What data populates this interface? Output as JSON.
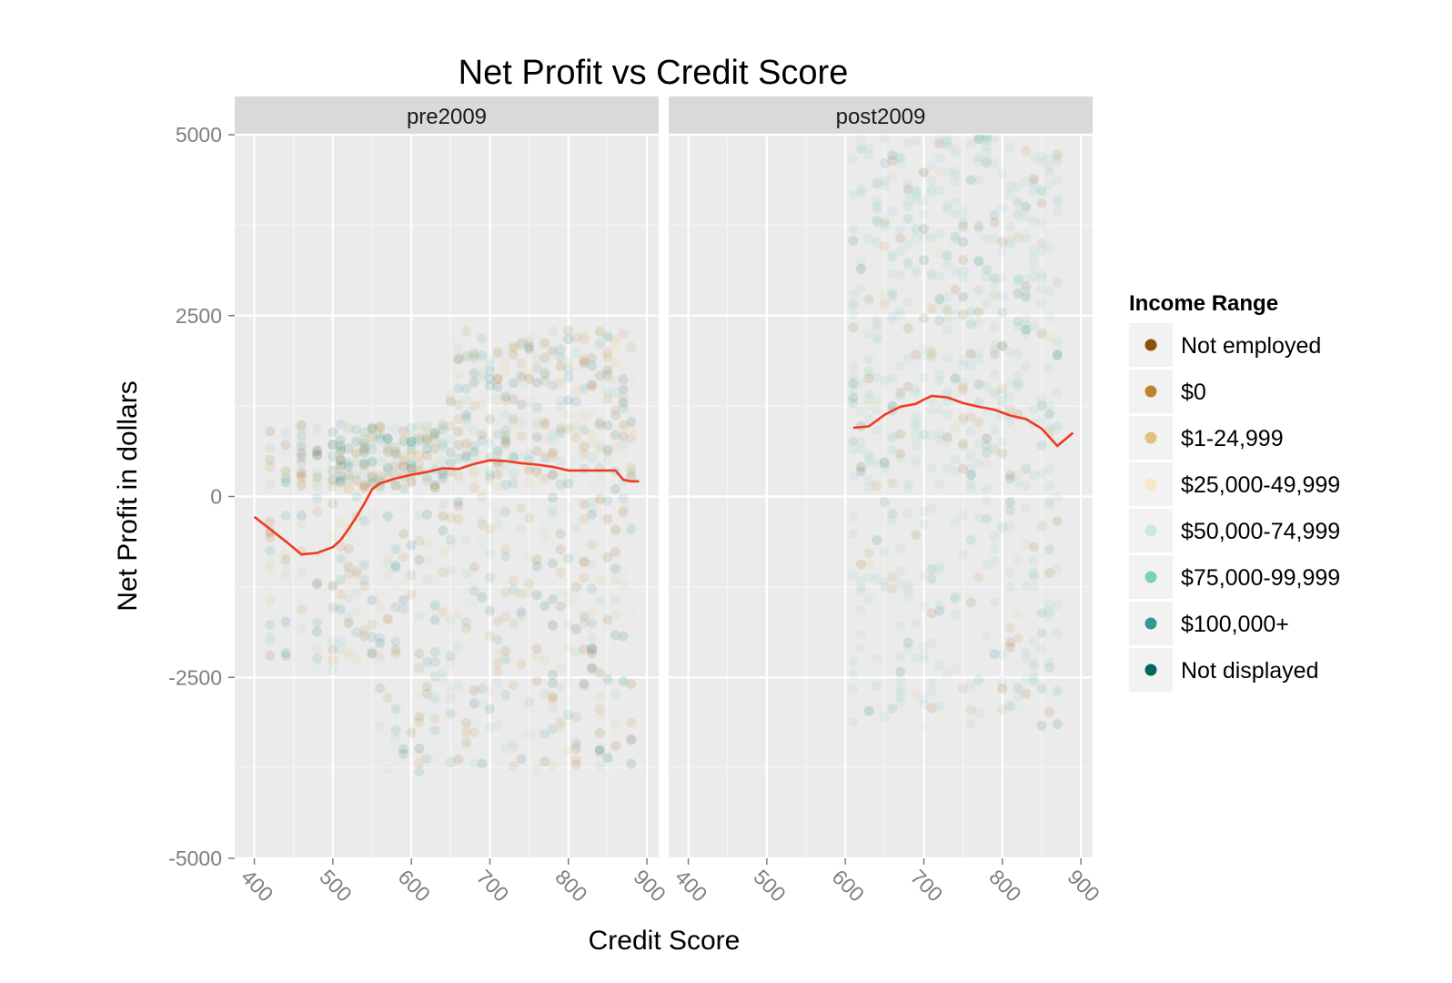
{
  "chart_data": {
    "type": "scatter",
    "title": "Net Profit vs Credit Score",
    "xlabel": "Credit Score",
    "ylabel": "Net Profit in dollars",
    "xlim": [
      375,
      915
    ],
    "ylim": [
      -5000,
      5000
    ],
    "x_ticks": [
      400,
      500,
      600,
      700,
      800,
      900
    ],
    "x_tick_labels": [
      "400",
      "500",
      "600",
      "700",
      "800",
      "900"
    ],
    "y_ticks": [
      -5000,
      -2500,
      0,
      2500,
      5000
    ],
    "y_tick_labels": [
      "-5000",
      "-2500",
      "0",
      "2500",
      "5000"
    ],
    "grid": true,
    "legend": {
      "title": "Income Range",
      "placement": "right",
      "items": [
        {
          "label": "Not employed",
          "color": "#8c510a"
        },
        {
          "label": "$0",
          "color": "#bf812d"
        },
        {
          "label": "$1-24,999",
          "color": "#dfc27d"
        },
        {
          "label": "$25,000-49,999",
          "color": "#f6e8c3"
        },
        {
          "label": "$50,000-74,999",
          "color": "#c7eae5"
        },
        {
          "label": "$75,000-99,999",
          "color": "#80cdc1"
        },
        {
          "label": "$100,000+",
          "color": "#35978f"
        },
        {
          "label": "Not displayed",
          "color": "#01665e"
        }
      ]
    },
    "panels": [
      {
        "label": "pre2009",
        "point_columns_x": [
          420,
          440,
          460,
          480,
          500,
          510,
          520,
          530,
          540,
          550,
          560,
          570,
          580,
          590,
          600,
          610,
          620,
          630,
          640,
          650,
          660,
          670,
          680,
          690,
          700,
          710,
          720,
          730,
          740,
          750,
          760,
          770,
          780,
          790,
          800,
          810,
          820,
          830,
          840,
          850,
          860,
          870,
          880
        ],
        "smooth_line": {
          "color": "#f03b20",
          "x": [
            400,
            420,
            440,
            460,
            480,
            500,
            510,
            520,
            530,
            540,
            550,
            560,
            580,
            600,
            620,
            640,
            660,
            680,
            700,
            720,
            740,
            760,
            780,
            800,
            820,
            840,
            860,
            870,
            880,
            890
          ],
          "y": [
            -280,
            -450,
            -620,
            -800,
            -780,
            -700,
            -600,
            -450,
            -280,
            -100,
            100,
            180,
            250,
            300,
            340,
            390,
            380,
            450,
            500,
            490,
            460,
            440,
            410,
            360,
            360,
            360,
            360,
            230,
            210,
            210
          ]
        }
      },
      {
        "label": "post2009",
        "point_columns_x": [
          610,
          620,
          630,
          640,
          650,
          660,
          670,
          680,
          690,
          700,
          710,
          720,
          730,
          740,
          750,
          760,
          770,
          780,
          790,
          800,
          810,
          820,
          830,
          840,
          850,
          860,
          870
        ],
        "smooth_line": {
          "color": "#f03b20",
          "x": [
            610,
            630,
            650,
            670,
            690,
            700,
            710,
            730,
            750,
            770,
            790,
            810,
            830,
            850,
            870,
            890
          ],
          "y": [
            950,
            970,
            1130,
            1240,
            1280,
            1340,
            1390,
            1370,
            1290,
            1240,
            1200,
            1120,
            1070,
            940,
            700,
            880
          ]
        }
      }
    ]
  }
}
